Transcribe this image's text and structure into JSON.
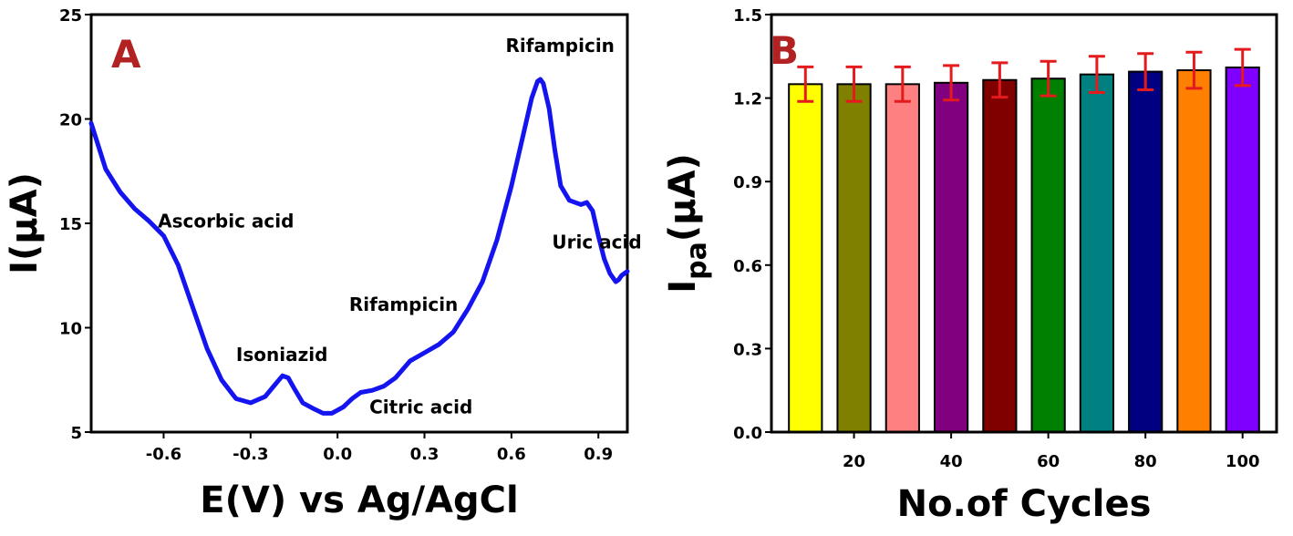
{
  "chart_data": [
    {
      "type": "line",
      "panel_label": "A",
      "xlabel": "E(V) vs Ag/AgCl",
      "ylabel": "I(μA)",
      "xlim": [
        -0.85,
        1.0
      ],
      "ylim": [
        5,
        25
      ],
      "xticks": [
        -0.6,
        -0.3,
        0.0,
        0.3,
        0.6,
        0.9
      ],
      "xtick_labels": [
        "-0.6",
        "-0.3",
        "0.0",
        "0.3",
        "0.6",
        "0.9"
      ],
      "yticks": [
        5,
        10,
        15,
        20,
        25
      ],
      "ytick_labels": [
        "5",
        "10",
        "15",
        "20",
        "25"
      ],
      "line_color": "#1414f0",
      "series": [
        {
          "x": [
            -0.85,
            -0.8,
            -0.75,
            -0.7,
            -0.65,
            -0.6,
            -0.55,
            -0.5,
            -0.45,
            -0.4,
            -0.35,
            -0.3,
            -0.25,
            -0.22,
            -0.19,
            -0.17,
            -0.15,
            -0.12,
            -0.08,
            -0.05,
            -0.02,
            0.02,
            0.05,
            0.08,
            0.12,
            0.16,
            0.2,
            0.25,
            0.3,
            0.35,
            0.4,
            0.45,
            0.5,
            0.55,
            0.6,
            0.64,
            0.67,
            0.69,
            0.7,
            0.71,
            0.73,
            0.75,
            0.77,
            0.8,
            0.84,
            0.86,
            0.88,
            0.9,
            0.92,
            0.94,
            0.96,
            0.97,
            0.98,
            1.0
          ],
          "y": [
            19.8,
            17.6,
            16.5,
            15.7,
            15.1,
            14.4,
            13.0,
            11.0,
            9.0,
            7.5,
            6.6,
            6.4,
            6.7,
            7.2,
            7.7,
            7.6,
            7.1,
            6.4,
            6.1,
            5.9,
            5.9,
            6.2,
            6.6,
            6.9,
            7.0,
            7.2,
            7.6,
            8.4,
            8.8,
            9.2,
            9.8,
            10.9,
            12.2,
            14.2,
            16.8,
            19.2,
            21.0,
            21.8,
            21.9,
            21.7,
            20.5,
            18.5,
            16.8,
            16.1,
            15.9,
            16.0,
            15.6,
            14.4,
            13.3,
            12.6,
            12.2,
            12.3,
            12.5,
            12.7
          ]
        }
      ],
      "annotations": [
        {
          "text": "Ascorbic acid",
          "x": -0.62,
          "y": 14.8
        },
        {
          "text": "Isoniazid",
          "x": -0.35,
          "y": 8.4
        },
        {
          "text": "Citric acid",
          "x": 0.11,
          "y": 5.9
        },
        {
          "text": "Rifampicin",
          "x": 0.04,
          "y": 10.8
        },
        {
          "text": "Rifampicin",
          "x": 0.58,
          "y": 23.2
        },
        {
          "text": "Uric acid",
          "x": 0.74,
          "y": 13.8
        }
      ]
    },
    {
      "type": "bar",
      "panel_label": "B",
      "xlabel": "No.of Cycles",
      "ylabel": "Ipa(μA)",
      "ylabel_main": "I",
      "ylabel_sub": "pa",
      "ylabel_tail": "(μA)",
      "categories": [
        10,
        20,
        30,
        40,
        50,
        60,
        70,
        80,
        90,
        100
      ],
      "values": [
        1.25,
        1.25,
        1.25,
        1.255,
        1.265,
        1.27,
        1.285,
        1.295,
        1.3,
        1.31
      ],
      "error": [
        0.062,
        0.062,
        0.062,
        0.062,
        0.062,
        0.062,
        0.065,
        0.065,
        0.065,
        0.065
      ],
      "bar_colors": [
        "#ffff00",
        "#808000",
        "#ff8080",
        "#800080",
        "#800000",
        "#008000",
        "#008080",
        "#000080",
        "#ff8000",
        "#8000ff"
      ],
      "error_color": "#e41a1c",
      "xlim": [
        3,
        107
      ],
      "ylim": [
        0.0,
        1.5
      ],
      "xticks": [
        20,
        40,
        60,
        80,
        100
      ],
      "xtick_labels": [
        "20",
        "40",
        "60",
        "80",
        "100"
      ],
      "yticks": [
        0.0,
        0.3,
        0.6,
        0.9,
        1.2,
        1.5
      ],
      "ytick_labels": [
        "0.0",
        "0.3",
        "0.6",
        "0.9",
        "1.2",
        "1.5"
      ]
    }
  ]
}
